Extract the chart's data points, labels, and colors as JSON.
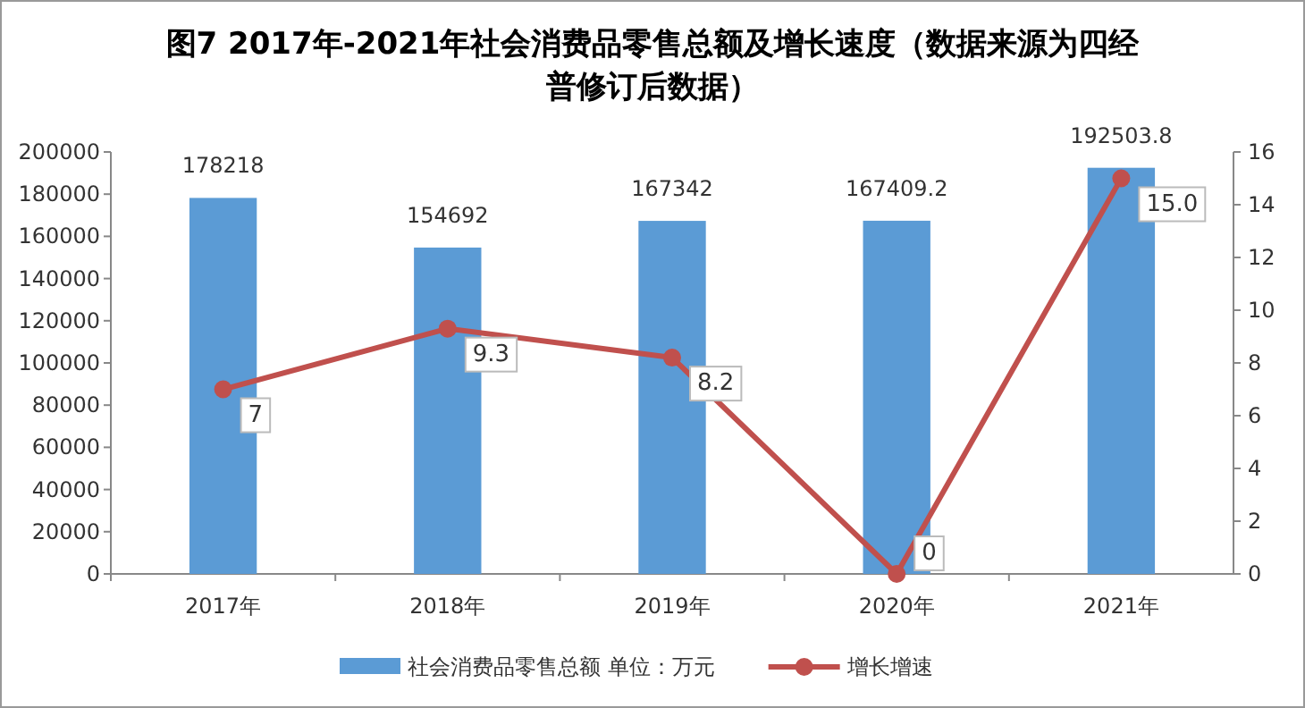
{
  "chart_data": {
    "type": "bar",
    "title": "图7  2017年-2021年社会消费品零售总额及增长速度（数据来源为四经普修订后数据）",
    "categories": [
      "2017年",
      "2018年",
      "2019年",
      "2020年",
      "2021年"
    ],
    "series": [
      {
        "name": "社会消费品零售总额   单位：万元",
        "color": "#5b9bd5",
        "values": [
          178218,
          154692,
          167342,
          167409.2,
          192503.8
        ],
        "value_labels": [
          "178218",
          "154692",
          "167342",
          "167409.2",
          "192503.8"
        ]
      },
      {
        "name": "增长增速",
        "type": "line",
        "axis": "y2",
        "color": "#c0504d",
        "marker": "circle",
        "values": [
          7,
          9.3,
          8.2,
          0,
          15.0
        ],
        "value_labels": [
          "7",
          "9.3",
          "8.2",
          "0",
          "15.0"
        ]
      }
    ],
    "ylim": [
      0,
      200000
    ],
    "yticks": [
      0,
      20000,
      40000,
      60000,
      80000,
      100000,
      120000,
      140000,
      160000,
      180000,
      200000
    ],
    "y2lim": [
      0,
      16
    ],
    "y2ticks": [
      0,
      2,
      4,
      6,
      8,
      10,
      12,
      14,
      16
    ],
    "grid": false,
    "legend": "bottom"
  }
}
